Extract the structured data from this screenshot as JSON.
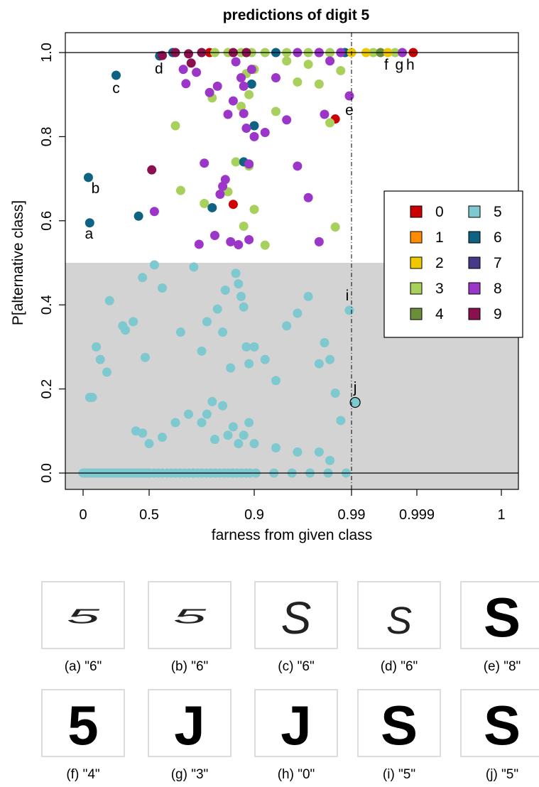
{
  "chart_data": {
    "type": "scatter",
    "title": "predictions of digit 5",
    "xlabel": "farness from given class",
    "ylabel": "P[alternative class]",
    "x_tick_labels": [
      "0",
      "0.5",
      "0.9",
      "0.99",
      "0.999",
      "1"
    ],
    "x_tick_positions": [
      0,
      0.5,
      0.9,
      0.99,
      0.999,
      1
    ],
    "x_scale": "log-odds-like transform of farness",
    "xlim": [
      0,
      1
    ],
    "y_ticks": [
      0.0,
      0.2,
      0.4,
      0.6,
      0.8,
      1.0
    ],
    "y_tick_labels": [
      "0.0",
      "0.2",
      "0.4",
      "0.6",
      "0.8",
      "1.0"
    ],
    "ylim": [
      -0.04,
      1.04
    ],
    "grid": false,
    "shaded_region": {
      "y_from": 0,
      "y_to": 0.5,
      "color": "#d3d3d3"
    },
    "reference_lines": {
      "horizontal": [
        0,
        1
      ],
      "vertical_dashdot": 0.99
    },
    "legend": {
      "placement": "right",
      "entries": [
        {
          "label": "0",
          "color": "#cc0000"
        },
        {
          "label": "1",
          "color": "#ff8c00"
        },
        {
          "label": "2",
          "color": "#f0c800"
        },
        {
          "label": "3",
          "color": "#a8d05c"
        },
        {
          "label": "4",
          "color": "#6b8e3a"
        },
        {
          "label": "5",
          "color": "#7ec8cf"
        },
        {
          "label": "6",
          "color": "#0e6282"
        },
        {
          "label": "7",
          "color": "#46398a"
        },
        {
          "label": "8",
          "color": "#9b36c8"
        },
        {
          "label": "9",
          "color": "#8a1050"
        }
      ]
    },
    "annotated_points": [
      {
        "label": "a",
        "x": 0.05,
        "y": 0.595,
        "class": "6"
      },
      {
        "label": "b",
        "x": 0.04,
        "y": 0.703,
        "class": "6"
      },
      {
        "label": "c",
        "x": 0.25,
        "y": 0.946,
        "class": "6"
      },
      {
        "label": "d",
        "x": 0.54,
        "y": 0.992,
        "class": "6"
      },
      {
        "label": "e",
        "x": 0.988,
        "y": 0.897,
        "class": "8"
      },
      {
        "label": "f",
        "x": 0.994,
        "y": 1.0,
        "class": "4"
      },
      {
        "label": "g",
        "x": 0.996,
        "y": 1.0,
        "class": "3"
      },
      {
        "label": "h",
        "x": 0.9985,
        "y": 1.0,
        "class": "0"
      },
      {
        "label": "i",
        "x": 0.988,
        "y": 0.387,
        "class": "5"
      },
      {
        "label": "j",
        "x": 0.9905,
        "y": 0.168,
        "class": "5",
        "highlighted": true
      }
    ],
    "series": [
      {
        "name": "0",
        "color": "#cc0000",
        "points": [
          [
            0.82,
            0.639
          ],
          [
            0.975,
            0.842
          ],
          [
            0.96,
            1.0
          ],
          [
            0.9985,
            1.0
          ],
          [
            0.73,
            1.0
          ]
        ]
      },
      {
        "name": "3",
        "color": "#a8d05c",
        "points": [
          [
            0.6,
            0.826
          ],
          [
            0.62,
            0.672
          ],
          [
            0.71,
            0.641
          ],
          [
            0.74,
            0.892
          ],
          [
            0.8,
            0.669
          ],
          [
            0.83,
            0.74
          ],
          [
            0.86,
            0.587
          ],
          [
            0.88,
            0.73
          ],
          [
            0.9,
            0.627
          ],
          [
            0.91,
            0.542
          ],
          [
            0.88,
            0.9
          ],
          [
            0.9,
            0.96
          ],
          [
            0.92,
            0.86
          ],
          [
            0.93,
            0.98
          ],
          [
            0.94,
            0.93
          ],
          [
            0.95,
            0.972
          ],
          [
            0.96,
            0.925
          ],
          [
            0.97,
            0.833
          ],
          [
            0.975,
            0.585
          ],
          [
            0.98,
            0.957
          ],
          [
            0.85,
            0.872
          ],
          [
            0.87,
            0.95
          ],
          [
            0.996,
            1.0
          ],
          [
            0.993,
            1.0
          ],
          [
            0.99,
            1.0
          ],
          [
            0.97,
            1.0
          ],
          [
            0.95,
            1.0
          ],
          [
            0.93,
            1.0
          ],
          [
            0.91,
            1.0
          ],
          [
            0.89,
            1.0
          ],
          [
            0.87,
            1.0
          ],
          [
            0.85,
            1.0
          ],
          [
            0.8,
            1.0
          ],
          [
            0.75,
            1.0
          ],
          [
            0.7,
            1.0
          ]
        ]
      },
      {
        "name": "6",
        "color": "#0e6282",
        "points": [
          [
            0.05,
            0.595
          ],
          [
            0.04,
            0.703
          ],
          [
            0.25,
            0.946
          ],
          [
            0.42,
            0.611
          ],
          [
            0.54,
            0.992
          ],
          [
            0.74,
            0.631
          ],
          [
            0.86,
            0.74
          ],
          [
            0.89,
            0.925
          ],
          [
            0.9,
            0.826
          ],
          [
            0.59,
            1.0
          ],
          [
            0.92,
            1.0
          ],
          [
            0.984,
            1.0
          ]
        ]
      },
      {
        "name": "4",
        "color": "#6b8e3a",
        "points": [
          [
            0.994,
            1.0
          ]
        ]
      },
      {
        "name": "2",
        "color": "#f0c800",
        "points": [
          [
            0.99,
            1.0
          ],
          [
            0.992,
            1.0
          ],
          [
            0.995,
            1.0
          ]
        ]
      },
      {
        "name": "8",
        "color": "#9b36c8",
        "points": [
          [
            0.52,
            0.622
          ],
          [
            0.63,
            0.96
          ],
          [
            0.64,
            0.926
          ],
          [
            0.68,
            0.953
          ],
          [
            0.69,
            0.544
          ],
          [
            0.71,
            0.737
          ],
          [
            0.73,
            0.905
          ],
          [
            0.75,
            0.565
          ],
          [
            0.76,
            0.92
          ],
          [
            0.77,
            0.663
          ],
          [
            0.78,
            0.682
          ],
          [
            0.79,
            0.698
          ],
          [
            0.8,
            0.853
          ],
          [
            0.81,
            0.55
          ],
          [
            0.82,
            0.885
          ],
          [
            0.83,
            0.978
          ],
          [
            0.84,
            0.543
          ],
          [
            0.85,
            0.94
          ],
          [
            0.86,
            0.92
          ],
          [
            0.86,
            0.855
          ],
          [
            0.87,
            0.82
          ],
          [
            0.88,
            0.555
          ],
          [
            0.88,
            0.735
          ],
          [
            0.89,
            0.96
          ],
          [
            0.9,
            0.8
          ],
          [
            0.91,
            0.81
          ],
          [
            0.92,
            0.94
          ],
          [
            0.93,
            0.84
          ],
          [
            0.94,
            0.73
          ],
          [
            0.95,
            0.655
          ],
          [
            0.96,
            0.55
          ],
          [
            0.965,
            0.853
          ],
          [
            0.97,
            0.98
          ],
          [
            0.988,
            0.897
          ],
          [
            0.997,
            1.0
          ],
          [
            0.98,
            1.0
          ],
          [
            0.96,
            1.0
          ],
          [
            0.94,
            1.0
          ]
        ]
      },
      {
        "name": "9",
        "color": "#8a1050",
        "points": [
          [
            0.51,
            0.721
          ],
          [
            0.55,
            0.993
          ],
          [
            0.6,
            1.0
          ],
          [
            0.65,
            0.997
          ],
          [
            0.66,
            0.975
          ],
          [
            0.7,
            1.0
          ],
          [
            0.82,
            1.0
          ],
          [
            0.87,
            1.0
          ]
        ]
      },
      {
        "name": "5",
        "color": "#7ec8cf",
        "points": [
          [
            0.05,
            0.18
          ],
          [
            0.07,
            0.18
          ],
          [
            0.1,
            0.3
          ],
          [
            0.13,
            0.27
          ],
          [
            0.18,
            0.24
          ],
          [
            0.2,
            0.41
          ],
          [
            0.3,
            0.35
          ],
          [
            0.32,
            0.34
          ],
          [
            0.38,
            0.36
          ],
          [
            0.45,
            0.465
          ],
          [
            0.47,
            0.275
          ],
          [
            0.52,
            0.495
          ],
          [
            0.55,
            0.44
          ],
          [
            0.62,
            0.335
          ],
          [
            0.67,
            0.49
          ],
          [
            0.7,
            0.29
          ],
          [
            0.72,
            0.36
          ],
          [
            0.74,
            0.17
          ],
          [
            0.76,
            0.39
          ],
          [
            0.78,
            0.335
          ],
          [
            0.79,
            0.435
          ],
          [
            0.81,
            0.25
          ],
          [
            0.83,
            0.475
          ],
          [
            0.84,
            0.45
          ],
          [
            0.85,
            0.42
          ],
          [
            0.86,
            0.395
          ],
          [
            0.87,
            0.3
          ],
          [
            0.88,
            0.26
          ],
          [
            0.9,
            0.3
          ],
          [
            0.91,
            0.27
          ],
          [
            0.92,
            0.22
          ],
          [
            0.93,
            0.35
          ],
          [
            0.94,
            0.38
          ],
          [
            0.95,
            0.42
          ],
          [
            0.96,
            0.26
          ],
          [
            0.965,
            0.31
          ],
          [
            0.97,
            0.27
          ],
          [
            0.975,
            0.19
          ],
          [
            0.98,
            0.125
          ],
          [
            0.988,
            0.387
          ],
          [
            0.4,
            0.1
          ],
          [
            0.45,
            0.095
          ],
          [
            0.5,
            0.07
          ],
          [
            0.55,
            0.085
          ],
          [
            0.6,
            0.12
          ],
          [
            0.65,
            0.14
          ],
          [
            0.7,
            0.12
          ],
          [
            0.72,
            0.14
          ],
          [
            0.75,
            0.08
          ],
          [
            0.78,
            0.16
          ],
          [
            0.8,
            0.09
          ],
          [
            0.82,
            0.11
          ],
          [
            0.84,
            0.07
          ],
          [
            0.86,
            0.09
          ],
          [
            0.88,
            0.12
          ],
          [
            0.9,
            0.07
          ],
          [
            0.92,
            0.06
          ],
          [
            0.94,
            0.05
          ],
          [
            0.96,
            0.05
          ],
          [
            0.97,
            0.03
          ]
        ]
      }
    ]
  },
  "figure": {
    "annotation_labels": [
      "a",
      "b",
      "c",
      "d",
      "e",
      "f",
      "g",
      "h",
      "i",
      "j"
    ],
    "thumbnails": [
      {
        "key": "a",
        "caption": "(a) \"6\"",
        "glyph": "5",
        "style": "thin-flat"
      },
      {
        "key": "b",
        "caption": "(b) \"6\"",
        "glyph": "5",
        "style": "thin-flat"
      },
      {
        "key": "c",
        "caption": "(c) \"6\"",
        "glyph": "S",
        "style": "thin"
      },
      {
        "key": "d",
        "caption": "(d) \"6\"",
        "glyph": "S",
        "style": "thin-small"
      },
      {
        "key": "e",
        "caption": "(e) \"8\"",
        "glyph": "S",
        "style": "bold"
      },
      {
        "key": "f",
        "caption": "(f) \"4\"",
        "glyph": "5",
        "style": "bold"
      },
      {
        "key": "g",
        "caption": "(g) \"3\"",
        "glyph": "J",
        "style": "bold"
      },
      {
        "key": "h",
        "caption": "(h) \"0\"",
        "glyph": "J",
        "style": "bold"
      },
      {
        "key": "i",
        "caption": "(i) \"5\"",
        "glyph": "S",
        "style": "bold"
      },
      {
        "key": "j",
        "caption": "(j) \"5\"",
        "glyph": "S",
        "style": "bold-loop"
      }
    ]
  }
}
